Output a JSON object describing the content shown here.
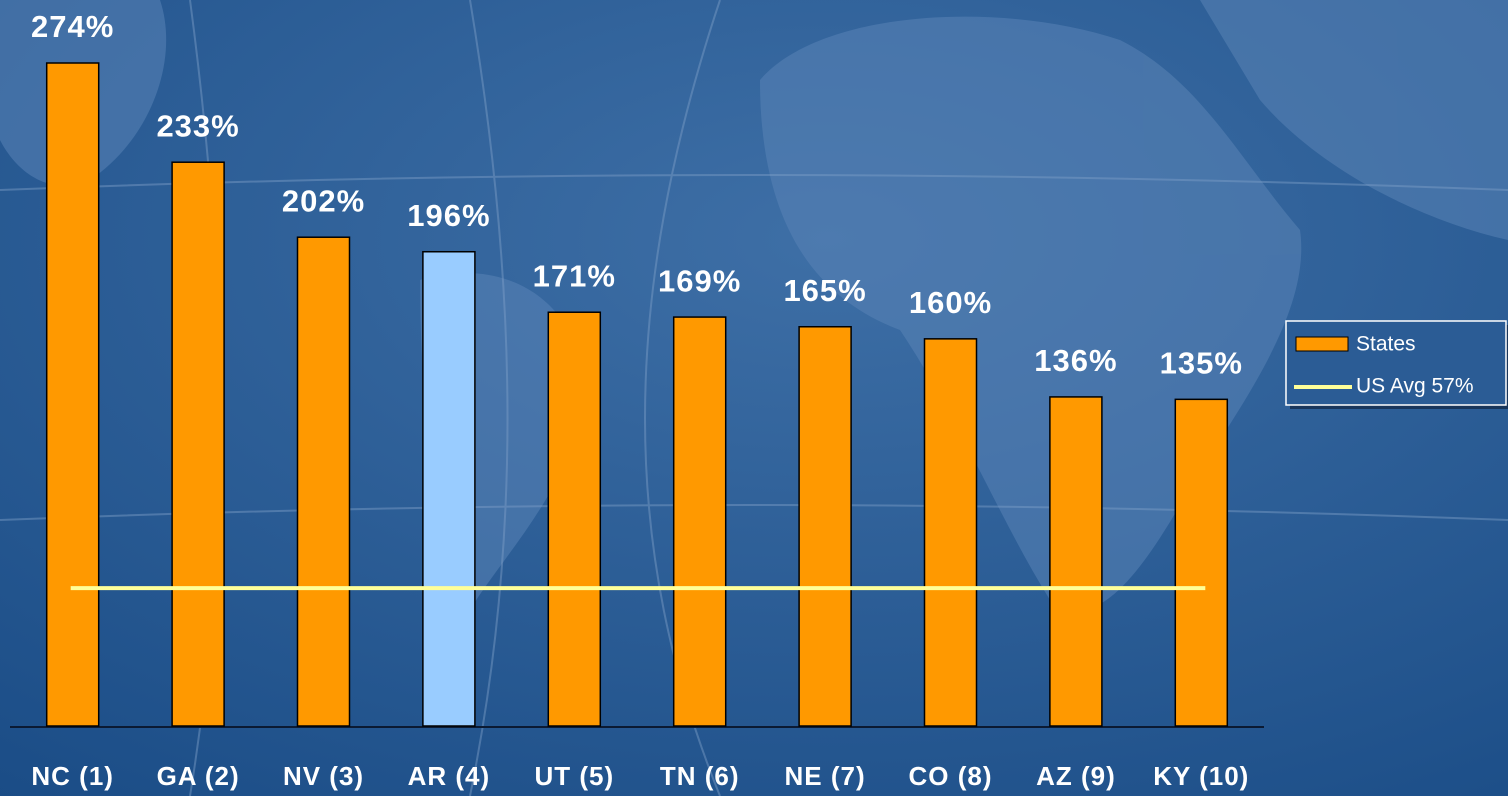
{
  "chart_data": {
    "type": "bar",
    "categories": [
      "NC (1)",
      "GA (2)",
      "NV (3)",
      "AR (4)",
      "UT (5)",
      "TN (6)",
      "NE (7)",
      "CO (8)",
      "AZ (9)",
      "KY (10)"
    ],
    "series": [
      {
        "name": "States",
        "color": "#ff9900",
        "colors": [
          "#ff9900",
          "#ff9900",
          "#ff9900",
          "#99ccff",
          "#ff9900",
          "#ff9900",
          "#ff9900",
          "#ff9900",
          "#ff9900",
          "#ff9900"
        ],
        "values": [
          274,
          233,
          202,
          196,
          171,
          169,
          165,
          160,
          136,
          135
        ],
        "value_labels": [
          "274%",
          "233%",
          "202%",
          "196%",
          "171%",
          "169%",
          "165%",
          "160%",
          "136%",
          "135%"
        ]
      }
    ],
    "reference_line": {
      "name": "US Avg 57%",
      "value": 57,
      "color": "#ffff99"
    },
    "legend": "right"
  }
}
